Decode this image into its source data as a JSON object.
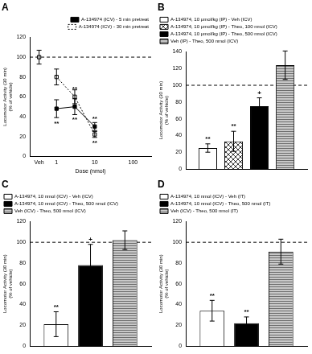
{
  "chart_data": [
    {
      "type": "line",
      "title": "A",
      "x_label": "Dose (nmol)",
      "y_label": [
        "Locomotor Activity (30 min)",
        "(% of vehicle)"
      ],
      "log": "x",
      "grid": false,
      "legend": "top right",
      "xlim": [
        0.2,
        300
      ],
      "xticks": [
        {
          "value": 0.35,
          "label": "Veh"
        },
        1,
        10,
        100
      ],
      "ylim": [
        0,
        120
      ],
      "yticks": [
        0,
        20,
        40,
        60,
        80,
        100,
        120
      ],
      "reference_line": 100,
      "vehicle": {
        "x": 0.35,
        "value": 100,
        "error": 7
      },
      "series": [
        {
          "name": "A-134974 (ICV) - 5 min pretreat",
          "color": "#000000",
          "marker": "square",
          "line_style": "solid",
          "x": [
            1,
            3,
            10
          ],
          "values": [
            48,
            50,
            30
          ],
          "errors": [
            9,
            8,
            4
          ]
        },
        {
          "name": "A-134974 (ICV) - 30 min pretreat",
          "color": "#000000",
          "marker": "square_open",
          "line_style": "dotted",
          "x": [
            1,
            3,
            10
          ],
          "values": [
            80,
            60,
            22
          ],
          "errors": [
            8,
            7,
            3
          ]
        }
      ],
      "annotations": [
        {
          "x": 1,
          "y": 33,
          "text": "**"
        },
        {
          "x": 3,
          "y": 68,
          "text": "**"
        },
        {
          "x": 3,
          "y": 37,
          "text": "**"
        },
        {
          "x": 10,
          "y": 38,
          "text": "**"
        },
        {
          "x": 10,
          "y": 13,
          "text": "**"
        }
      ]
    },
    {
      "type": "bar",
      "title": "B",
      "y_label": [
        "Locomotor Activity (30 min)",
        "(% of vehicle)"
      ],
      "grid": false,
      "legend": "top left",
      "tick_labels": "y",
      "categories": [
        null
      ],
      "ylim": [
        0,
        140
      ],
      "yticks": [
        0,
        20,
        40,
        60,
        80,
        100,
        120,
        140
      ],
      "reference_line": 100,
      "series": [
        {
          "name": "A-134974, 10 μmol/kg (IP) - Veh (ICV)",
          "color": "#ffffff",
          "marker": "solid",
          "values": [
            25
          ],
          "errors": [
            5
          ],
          "annotations": [
            "**"
          ]
        },
        {
          "name": "A-134974, 10 μmol/kg (IP) - Theo, 100 nmol (ICV)",
          "color": "#ffffff",
          "marker": "crosshatch",
          "values": [
            33
          ],
          "errors": [
            12
          ],
          "annotations": [
            "**"
          ]
        },
        {
          "name": "A-134974, 10 μmol/kg (IP) - Theo, 500 nmol (ICV)",
          "color": "#000000",
          "marker": "solid",
          "values": [
            75
          ],
          "errors": [
            10
          ],
          "annotations": [
            "+"
          ]
        },
        {
          "name": "Veh (IP) - Theo, 500 nmol (ICV)",
          "color": "#c8c8c8",
          "marker": "hstripes",
          "values": [
            124
          ],
          "errors": [
            17
          ],
          "annotations": [
            null
          ]
        }
      ]
    },
    {
      "type": "bar",
      "title": "C",
      "y_label": [
        "Locomotor Activity (30 min)",
        "(% of vehicle)"
      ],
      "grid": false,
      "legend": "top left",
      "tick_labels": "y",
      "categories": [
        null
      ],
      "ylim": [
        0,
        120
      ],
      "yticks": [
        0,
        20,
        40,
        60,
        80,
        100,
        120
      ],
      "reference_line": 100,
      "series": [
        {
          "name": "A-134974, 10 nmol (ICV) - Veh (ICV)",
          "color": "#ffffff",
          "marker": "solid",
          "values": [
            21
          ],
          "errors": [
            12
          ],
          "annotations": [
            "**"
          ]
        },
        {
          "name": "A-134974, 10 nmol (ICV) - Theo, 500 nmol (ICV)",
          "color": "#000000",
          "marker": "solid",
          "values": [
            78
          ],
          "errors": [
            20
          ],
          "annotations": [
            "+"
          ]
        },
        {
          "name": "Veh (ICV) - Theo, 500 nmol (ICV)",
          "color": "#c8c8c8",
          "marker": "hstripes",
          "values": [
            102
          ],
          "errors": [
            9
          ],
          "annotations": [
            null
          ]
        }
      ]
    },
    {
      "type": "bar",
      "title": "D",
      "y_label": [
        "Locomotor Activity (30 min)",
        "(% of vehicle)"
      ],
      "grid": false,
      "legend": "top left",
      "tick_labels": "y",
      "categories": [
        null
      ],
      "ylim": [
        0,
        120
      ],
      "yticks": [
        0,
        20,
        40,
        60,
        80,
        100,
        120
      ],
      "reference_line": 100,
      "series": [
        {
          "name": "A-134974, 10 nmol (ICV) - Veh (IT)",
          "color": "#ffffff",
          "marker": "solid",
          "values": [
            34
          ],
          "errors": [
            10
          ],
          "annotations": [
            "**"
          ]
        },
        {
          "name": "A-134974, 10 nmol (ICV) - Theo, 500 nmol (IT)",
          "color": "#000000",
          "marker": "solid",
          "values": [
            22
          ],
          "errors": [
            6
          ],
          "annotations": [
            "**"
          ]
        },
        {
          "name": "Veh (ICV) - Theo, 500 nmol (IT)",
          "color": "#c8c8c8",
          "marker": "hstripes",
          "values": [
            91
          ],
          "errors": [
            12
          ],
          "annotations": [
            null
          ]
        }
      ]
    }
  ]
}
